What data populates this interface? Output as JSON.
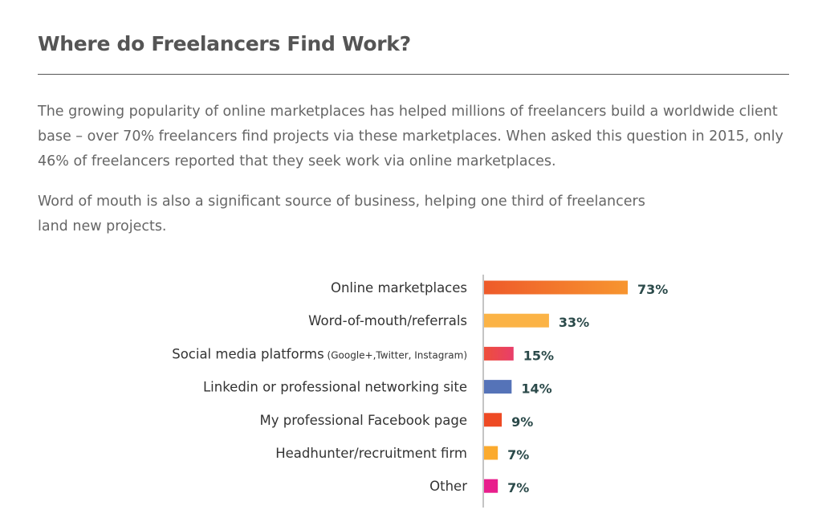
{
  "title": "Where do Freelancers Find Work?",
  "paragraphs": [
    "The growing popularity of online marketplaces has helped millions of freelancers build a worldwide client base – over 70% freelancers find projects via these marketplaces. When asked this question in 2015, only 46% of freelancers reported that they seek work via online marketplaces.",
    "Word of mouth is also a significant source of business, helping one third of freelancers land new projects."
  ],
  "chart_data": {
    "type": "bar",
    "orientation": "horizontal",
    "categories": [
      "Online marketplaces",
      "Word-of-mouth/referrals",
      "Social media platforms",
      "Linkedin or professional networking site",
      "My professional Facebook page",
      "Headhunter/recruitment firm",
      "Other"
    ],
    "category_notes": [
      "",
      "",
      "(Google+,Twitter, Instagram)",
      "",
      "",
      "",
      ""
    ],
    "values": [
      73,
      33,
      15,
      14,
      9,
      7,
      7
    ],
    "value_labels": [
      "73%",
      "33%",
      "15%",
      "14%",
      "9%",
      "7%",
      "7%"
    ],
    "colors": [
      [
        "#ee5a2a",
        "#f7952f"
      ],
      [
        "#fbb346",
        "#fbb346"
      ],
      [
        "#ee4f3a",
        "#e83e6b"
      ],
      [
        "#5573b8",
        "#5573b8"
      ],
      [
        "#ee4a24",
        "#ee4a24"
      ],
      [
        "#fbaa2e",
        "#fbaa2e"
      ],
      [
        "#e81e8c",
        "#e81e8c"
      ]
    ],
    "xlim": [
      0,
      100
    ],
    "grid": false,
    "legend": "none"
  }
}
